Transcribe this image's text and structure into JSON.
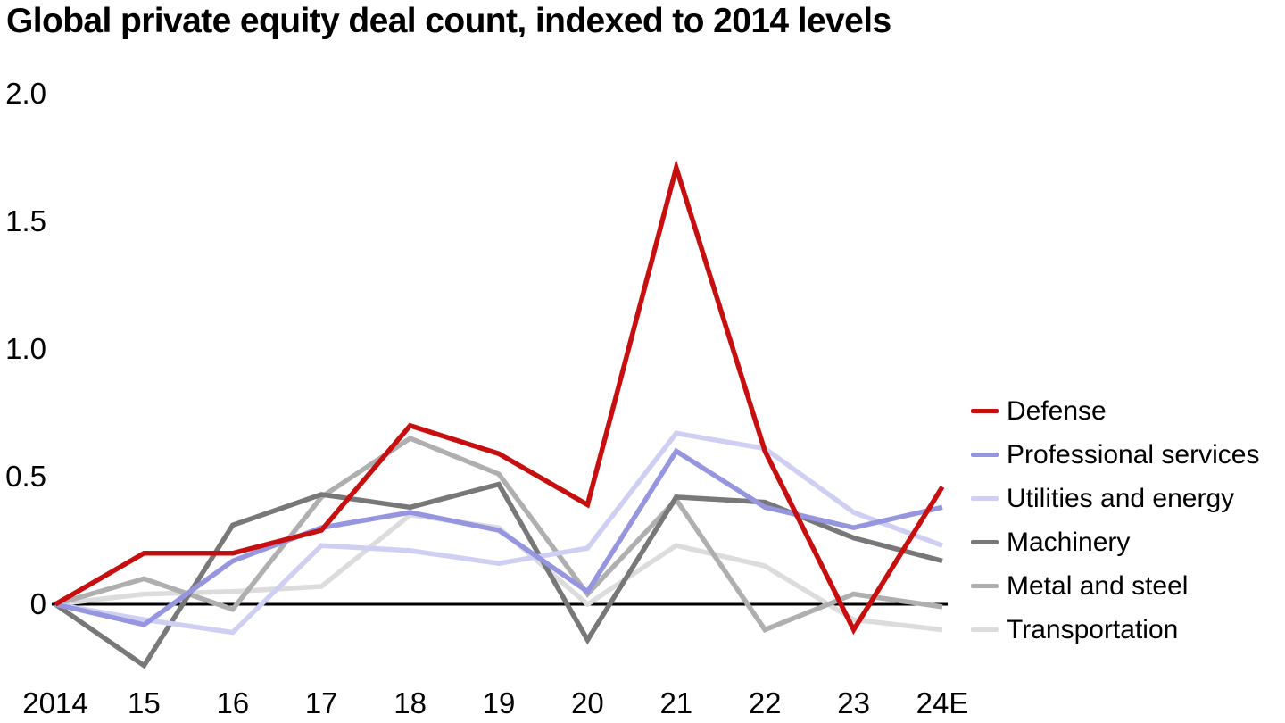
{
  "page": {
    "title": "Global private equity deal count, indexed to 2014 levels"
  },
  "chart_data": {
    "type": "line",
    "title": "Global private equity deal count, indexed to 2014 levels",
    "x_categories": [
      "2014",
      "15",
      "16",
      "17",
      "18",
      "19",
      "20",
      "21",
      "22",
      "23",
      "24E"
    ],
    "y_ticks": [
      {
        "value": 0,
        "label": "0"
      },
      {
        "value": 0.5,
        "label": "0.5"
      },
      {
        "value": 1.0,
        "label": "1.0"
      },
      {
        "value": 1.5,
        "label": "1.5"
      },
      {
        "value": 2.0,
        "label": "2.0"
      }
    ],
    "ylim": [
      -0.32,
      2.1
    ],
    "grid": false,
    "zero_line": true,
    "baseline_color": "#000000",
    "legend_position": "right-middle",
    "series": [
      {
        "name": "Defense",
        "color": "#c80f0f",
        "values": [
          0,
          0.2,
          0.2,
          0.29,
          0.7,
          0.59,
          0.39,
          1.71,
          0.6,
          -0.1,
          0.46
        ]
      },
      {
        "name": "Professional services",
        "color": "#9595e0",
        "values": [
          0,
          -0.08,
          0.17,
          0.3,
          0.36,
          0.29,
          0.05,
          0.6,
          0.38,
          0.3,
          0.38
        ]
      },
      {
        "name": "Utilities and energy",
        "color": "#cfcff4",
        "values": [
          0,
          -0.06,
          -0.11,
          0.23,
          0.21,
          0.16,
          0.22,
          0.67,
          0.61,
          0.36,
          0.23
        ]
      },
      {
        "name": "Machinery",
        "color": "#787878",
        "values": [
          0,
          -0.24,
          0.31,
          0.43,
          0.38,
          0.47,
          -0.14,
          0.42,
          0.4,
          0.26,
          0.17
        ]
      },
      {
        "name": "Metal and steel",
        "color": "#afafaf",
        "values": [
          0,
          0.1,
          -0.02,
          0.42,
          0.65,
          0.51,
          0.04,
          0.41,
          -0.1,
          0.04,
          -0.01
        ]
      },
      {
        "name": "Transportation",
        "color": "#dcdcdc",
        "values": [
          0,
          0.04,
          0.05,
          0.07,
          0.35,
          0.3,
          0.0,
          0.23,
          0.15,
          -0.06,
          -0.1
        ]
      }
    ]
  }
}
